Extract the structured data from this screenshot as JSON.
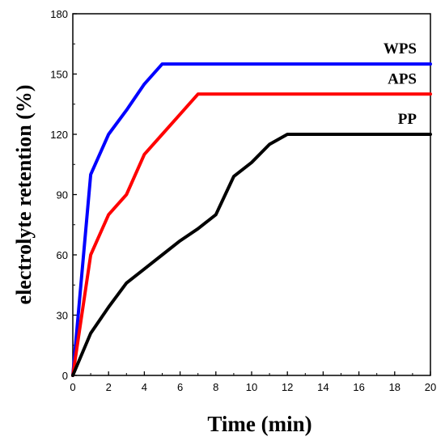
{
  "chart_data": {
    "type": "line",
    "xlabel": "Time (min)",
    "ylabel": "electrolyte retention (%)",
    "xlim": [
      0,
      20
    ],
    "ylim": [
      0,
      180
    ],
    "xticks": [
      0,
      2,
      4,
      6,
      8,
      10,
      12,
      14,
      16,
      18,
      20
    ],
    "yticks": [
      0,
      30,
      60,
      90,
      120,
      150,
      180
    ],
    "grid": false,
    "legend": "inline-right",
    "series": [
      {
        "name": "WPS",
        "color": "#0000ff",
        "x": [
          0,
          1,
          2,
          3,
          4,
          5,
          6,
          8,
          10,
          12,
          14,
          16,
          18,
          20
        ],
        "y": [
          0,
          100,
          120,
          132,
          145,
          155,
          155,
          155,
          155,
          155,
          155,
          155,
          155,
          155
        ]
      },
      {
        "name": "APS",
        "color": "#ff0000",
        "x": [
          0,
          1,
          2,
          3,
          4,
          5,
          6,
          7,
          8,
          10,
          12,
          14,
          16,
          18,
          20
        ],
        "y": [
          0,
          60,
          80,
          90,
          110,
          120,
          130,
          140,
          140,
          140,
          140,
          140,
          140,
          140,
          140
        ]
      },
      {
        "name": "PP",
        "color": "#000000",
        "x": [
          0,
          1,
          2,
          3,
          4,
          5,
          6,
          7,
          8,
          9,
          10,
          11,
          12,
          14,
          16,
          18,
          20
        ],
        "y": [
          0,
          21,
          34,
          46,
          53,
          60,
          67,
          73,
          80,
          99,
          106,
          115,
          120,
          120,
          120,
          120,
          120
        ]
      }
    ]
  }
}
